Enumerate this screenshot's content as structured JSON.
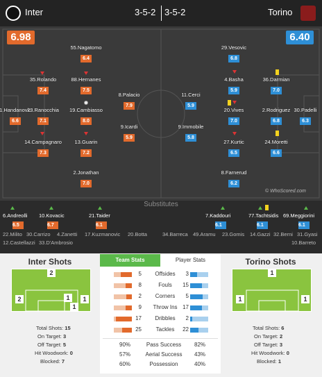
{
  "header": {
    "home_team": "Inter",
    "away_team": "Torino",
    "home_formation": "3-5-2",
    "away_formation": "3-5-2",
    "home_rating": "6.98",
    "away_rating": "6.40"
  },
  "home_players": [
    {
      "name": "55.Nagatomo",
      "rating": "6.4"
    },
    {
      "name": "35.Rolando",
      "rating": "7.4"
    },
    {
      "name": "88.Hernanes",
      "rating": "7.5"
    },
    {
      "name": "8.Palacio",
      "rating": "7.9"
    },
    {
      "name": "1.Handanovic",
      "rating": "6.6"
    },
    {
      "name": "23.Ranocchia",
      "rating": "7.1"
    },
    {
      "name": "19.Cambiasso",
      "rating": "8.0"
    },
    {
      "name": "9.Icardi",
      "rating": "5.9"
    },
    {
      "name": "14.Campagnaro",
      "rating": "7.3"
    },
    {
      "name": "13.Guarin",
      "rating": "7.2"
    },
    {
      "name": "2.Jonathan",
      "rating": "7.0"
    }
  ],
  "away_players": [
    {
      "name": "29.Vesovic",
      "rating": "6.8"
    },
    {
      "name": "4.Basha",
      "rating": "5.9"
    },
    {
      "name": "36.Darmian",
      "rating": "7.0"
    },
    {
      "name": "11.Cerci",
      "rating": "5.9"
    },
    {
      "name": "20.Vives",
      "rating": "7.0"
    },
    {
      "name": "2.Rodriguez",
      "rating": "6.8"
    },
    {
      "name": "30.Padelli",
      "rating": "6.3"
    },
    {
      "name": "9.Immobile",
      "rating": "5.8"
    },
    {
      "name": "27.Kurtic",
      "rating": "6.5"
    },
    {
      "name": "24.Moretti",
      "rating": "6.6"
    },
    {
      "name": "8.Farnerud",
      "rating": "6.2"
    }
  ],
  "watermark": "© WhoScored.com",
  "substitutes_title": "Substitutes",
  "home_subs": [
    {
      "name": "6.Andreolli",
      "rating": "6.5"
    },
    {
      "name": "10.Kovacic",
      "rating": "6.7"
    },
    {
      "name": "21.Taider",
      "rating": "6.1"
    }
  ],
  "home_bench": [
    "22.Milito",
    "30.Carrizo",
    "4.Zanetti",
    "17.Kuzmanovic",
    "20.Botta",
    "12.Castellazzi",
    "33.D'Ambrosio"
  ],
  "away_subs": [
    {
      "name": "7.Kaddouri",
      "rating": "6.1"
    },
    {
      "name": "77.Tachtsidis",
      "rating": "6.1"
    },
    {
      "name": "69.Meggiorini",
      "rating": "6.1"
    }
  ],
  "away_bench": [
    "34.Barreca",
    "49.Aramu",
    "23.Gomis",
    "14.Gazzi",
    "32.Berni",
    "31.Gyasi",
    "10.Barreto"
  ],
  "home_shots": {
    "title": "Inter Shots",
    "zone_top": "2",
    "zone_left": "2",
    "zone_center": "1",
    "zone_right": "1",
    "zone_box": "1",
    "total_label": "Total Shots:",
    "total": "15",
    "on_label": "On Target:",
    "on": "3",
    "off_label": "Off Target:",
    "off": "5",
    "wood_label": "Hit Woodwork:",
    "wood": "0",
    "blocked_label": "Blocked:",
    "blocked": "7"
  },
  "away_shots": {
    "title": "Torino Shots",
    "zone_top": "1",
    "zone_left": "1",
    "zone_right": "1",
    "total_label": "Total Shots:",
    "total": "6",
    "on_label": "On Target:",
    "on": "2",
    "off_label": "Off Target:",
    "off": "3",
    "wood_label": "Hit Woodwork:",
    "wood": "0",
    "blocked_label": "Blocked:",
    "blocked": "1"
  },
  "tabs": {
    "team_stats": "Team Stats",
    "player_stats": "Player Stats"
  },
  "team_stats": [
    {
      "home": "5",
      "label": "Offsides",
      "away": "3",
      "home_frac": 0.62,
      "away_frac": 0.38
    },
    {
      "home": "8",
      "label": "Fouls",
      "away": "15",
      "home_frac": 0.35,
      "away_frac": 0.65
    },
    {
      "home": "2",
      "label": "Corners",
      "away": "5",
      "home_frac": 0.29,
      "away_frac": 0.71
    },
    {
      "home": "9",
      "label": "Throw Ins",
      "away": "17",
      "home_frac": 0.35,
      "away_frac": 0.65
    },
    {
      "home": "17",
      "label": "Dribbles",
      "away": "2",
      "home_frac": 0.89,
      "away_frac": 0.11
    },
    {
      "home": "25",
      "label": "Tackles",
      "away": "22",
      "home_frac": 0.53,
      "away_frac": 0.47
    }
  ],
  "pct_stats": [
    {
      "home": "90%",
      "label": "Pass Success",
      "away": "82%"
    },
    {
      "home": "57%",
      "label": "Aerial Success",
      "away": "43%"
    },
    {
      "home": "60%",
      "label": "Possession",
      "away": "40%"
    }
  ],
  "colors": {
    "home": "#e26a2c",
    "away": "#2e8fd6",
    "pitch": "#8ac43f"
  }
}
